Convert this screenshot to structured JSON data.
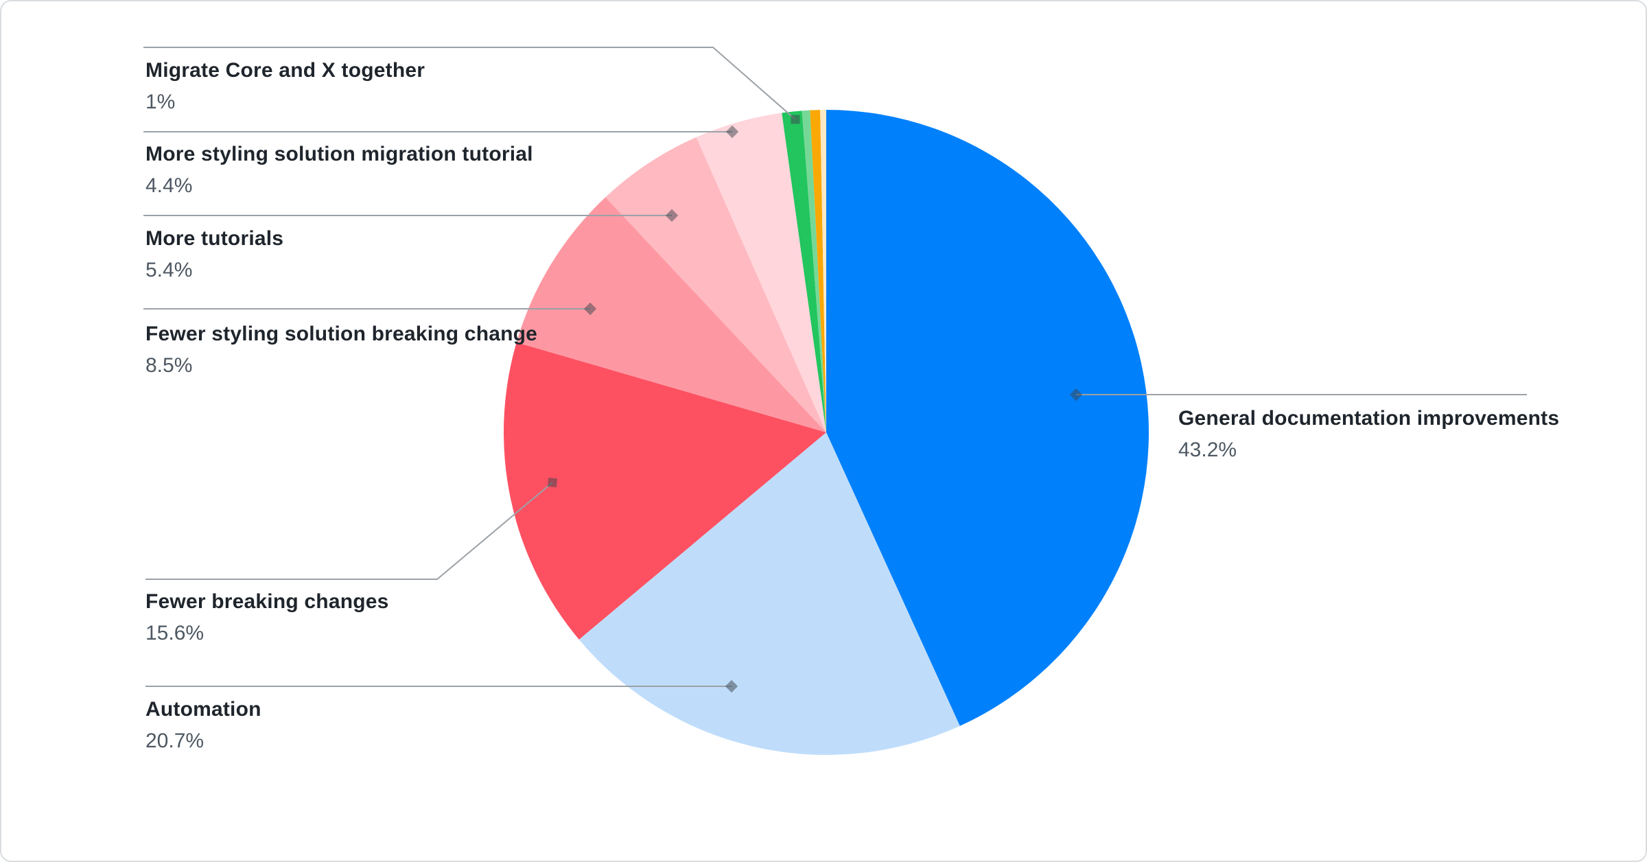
{
  "chart_data": {
    "type": "pie",
    "title": "",
    "legend_position": "leader-labels",
    "direction": "clockwise",
    "start_angle_deg": 0,
    "total": 100,
    "slices": [
      {
        "label": "General documentation improvements",
        "value": 43.2,
        "pct_label": "43.2%",
        "color": "#0080FB",
        "label_side": "right"
      },
      {
        "label": "Automation",
        "value": 20.7,
        "pct_label": "20.7%",
        "color": "#BFDDFB",
        "label_side": "left"
      },
      {
        "label": "Fewer breaking changes",
        "value": 15.6,
        "pct_label": "15.6%",
        "color": "#FD5162",
        "label_side": "left"
      },
      {
        "label": "Fewer styling solution breaking change",
        "value": 8.5,
        "pct_label": "8.5%",
        "color": "#FD98A2",
        "label_side": "left"
      },
      {
        "label": "More tutorials",
        "value": 5.4,
        "pct_label": "5.4%",
        "color": "#FFB9C0",
        "label_side": "left"
      },
      {
        "label": "More styling solution migration tutorial",
        "value": 4.4,
        "pct_label": "4.4%",
        "color": "#FFD6DC",
        "label_side": "left"
      },
      {
        "label": "Migrate Core and X together",
        "value": 1.0,
        "pct_label": "1%",
        "color": "#22C55E",
        "label_side": "left"
      },
      {
        "label": "",
        "value": 0.4,
        "pct_label": "",
        "color": "#76D897",
        "label_side": "none"
      },
      {
        "label": "",
        "value": 0.5,
        "pct_label": "",
        "color": "#FAA805",
        "label_side": "none"
      },
      {
        "label": "",
        "value": 0.3,
        "pct_label": "",
        "color": "#FBE8C4",
        "label_side": "none"
      }
    ],
    "leader": {
      "line_color": "#9BA1A7",
      "marker_color": "#3C434B"
    },
    "colors": {
      "background": "#FFFFFF",
      "card_border": "#D9DDE0",
      "label_title": "#1F252C",
      "label_percent": "#4E5862"
    }
  }
}
